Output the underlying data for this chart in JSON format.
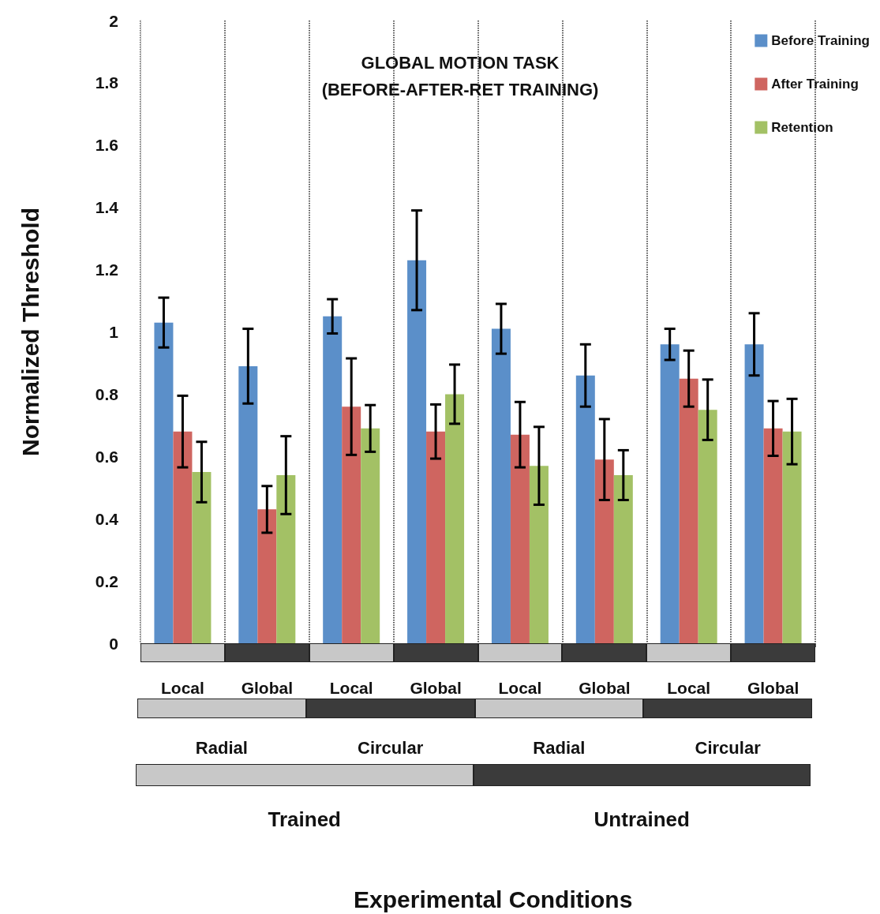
{
  "chart_data": {
    "type": "bar",
    "title": "GLOBAL MOTION TASK",
    "subtitle": "(BEFORE-AFTER-RET TRAINING)",
    "ylabel": "Normalized Threshold",
    "categories": [
      "Local",
      "Global",
      "Local",
      "Global",
      "Local",
      "Global",
      "Local",
      "Global"
    ],
    "annotations": [
      "Radial",
      "Circular",
      "Radial",
      "Circular",
      "Trained",
      "Untrained",
      "Experimental Conditions"
    ],
    "series": [
      {
        "name": "Before Training",
        "color": "#5b8fc9",
        "values": [
          1.03,
          0.89,
          1.05,
          1.23,
          1.01,
          0.86,
          0.96,
          0.96
        ],
        "errors": [
          0.08,
          0.12,
          0.055,
          0.16,
          0.08,
          0.1,
          0.05,
          0.1
        ]
      },
      {
        "name": "After Training",
        "color": "#cf6560",
        "values": [
          0.68,
          0.43,
          0.76,
          0.68,
          0.67,
          0.59,
          0.85,
          0.69
        ],
        "errors": [
          0.115,
          0.075,
          0.155,
          0.087,
          0.105,
          0.13,
          0.09,
          0.088
        ]
      },
      {
        "name": "Retention",
        "color": "#a3c165",
        "values": [
          0.55,
          0.54,
          0.69,
          0.8,
          0.57,
          0.54,
          0.75,
          0.68
        ],
        "errors": [
          0.097,
          0.125,
          0.075,
          0.095,
          0.125,
          0.08,
          0.097,
          0.105
        ]
      }
    ],
    "ylim": [
      0,
      2
    ],
    "yticks": [
      0,
      0.2,
      0.4,
      0.6,
      0.8,
      1,
      1.2,
      1.4,
      1.6,
      1.8,
      2
    ],
    "grid": "x",
    "legend": "top right"
  }
}
